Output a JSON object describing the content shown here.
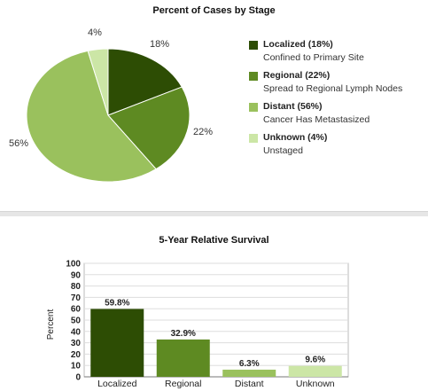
{
  "colors": {
    "localized": "#2d4d04",
    "regional": "#5e8a22",
    "distant": "#9ac15d",
    "unknown": "#cce6a6"
  },
  "pie": {
    "title": "Percent of Cases by Stage",
    "slice_labels": [
      "18%",
      "22%",
      "56%",
      "4%"
    ],
    "legend": [
      {
        "name": "Localized (18%)",
        "desc": "Confined to Primary Site"
      },
      {
        "name": "Regional (22%)",
        "desc": "Spread to Regional Lymph Nodes"
      },
      {
        "name": "Distant (56%)",
        "desc": "Cancer Has Metastasized"
      },
      {
        "name": "Unknown (4%)",
        "desc": "Unstaged"
      }
    ]
  },
  "bar": {
    "title": "5-Year Relative Survival",
    "ylabel": "Percent",
    "yticks": [
      "0",
      "10",
      "20",
      "30",
      "40",
      "50",
      "60",
      "70",
      "80",
      "90",
      "100"
    ],
    "value_labels": [
      "59.8%",
      "32.9%",
      "6.3%",
      "9.6%"
    ]
  },
  "chart_data": [
    {
      "type": "pie",
      "title": "Percent of Cases by Stage",
      "categories": [
        "Localized",
        "Regional",
        "Distant",
        "Unknown"
      ],
      "values": [
        18,
        22,
        56,
        4
      ]
    },
    {
      "type": "bar",
      "title": "5-Year Relative Survival",
      "categories": [
        "Localized",
        "Regional",
        "Distant",
        "Unknown"
      ],
      "values": [
        59.8,
        32.9,
        6.3,
        9.6
      ],
      "ylabel": "Percent",
      "ylim": [
        0,
        100
      ],
      "grid": true
    }
  ]
}
